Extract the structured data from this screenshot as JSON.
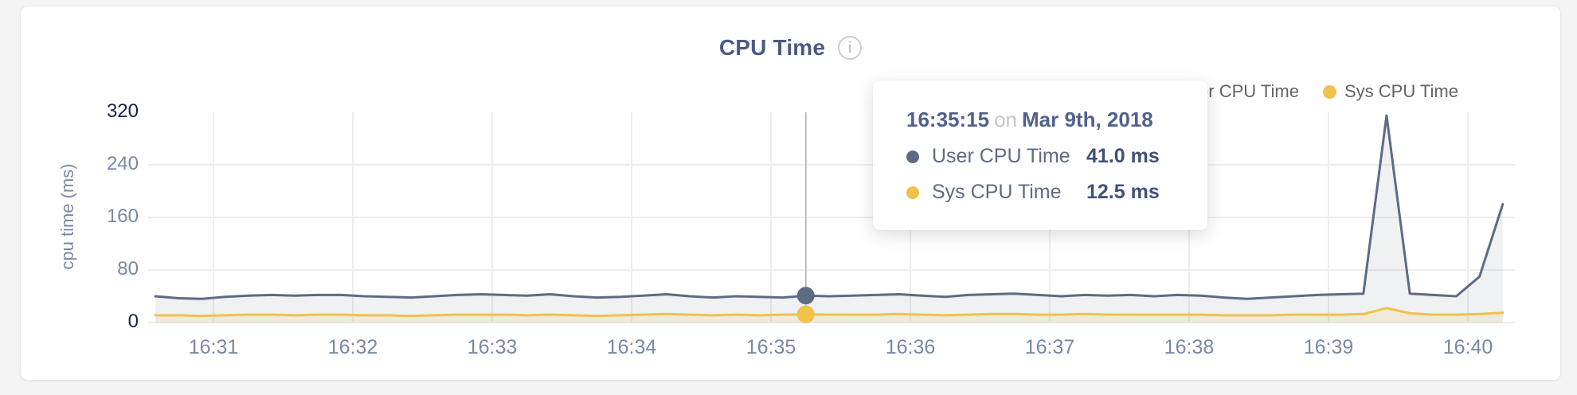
{
  "card": {
    "title": "CPU Time",
    "info_icon": "i"
  },
  "legend": {
    "items": [
      {
        "label": "User CPU Time",
        "color": "#5d6b85"
      },
      {
        "label": "Sys CPU Time",
        "color": "#f0c24b"
      }
    ]
  },
  "tooltip": {
    "time": "16:35:15",
    "preposition": "on",
    "date": "Mar 9th, 2018",
    "rows": [
      {
        "label": "User CPU Time",
        "value": "41.0 ms",
        "color": "#5d6b85"
      },
      {
        "label": "Sys CPU Time",
        "value": "12.5 ms",
        "color": "#f0c24b"
      }
    ]
  },
  "chart_data": {
    "type": "area",
    "title": "CPU Time",
    "xlabel": "",
    "ylabel": "cpu time (ms)",
    "ylim": [
      0,
      320
    ],
    "yticks": [
      0,
      80,
      160,
      240,
      320
    ],
    "xticks": [
      "16:31",
      "16:32",
      "16:33",
      "16:34",
      "16:35",
      "16:36",
      "16:37",
      "16:38",
      "16:39",
      "16:40"
    ],
    "grid": true,
    "legend_position": "top-right",
    "x": [
      "16:30:35",
      "16:30:45",
      "16:30:55",
      "16:31:05",
      "16:31:15",
      "16:31:25",
      "16:31:35",
      "16:31:45",
      "16:31:55",
      "16:32:05",
      "16:32:15",
      "16:32:25",
      "16:32:35",
      "16:32:45",
      "16:32:55",
      "16:33:05",
      "16:33:15",
      "16:33:25",
      "16:33:35",
      "16:33:45",
      "16:33:55",
      "16:34:05",
      "16:34:15",
      "16:34:25",
      "16:34:35",
      "16:34:45",
      "16:34:55",
      "16:35:05",
      "16:35:15",
      "16:35:25",
      "16:35:35",
      "16:35:45",
      "16:35:55",
      "16:36:05",
      "16:36:15",
      "16:36:25",
      "16:36:35",
      "16:36:45",
      "16:36:55",
      "16:37:05",
      "16:37:15",
      "16:37:25",
      "16:37:35",
      "16:37:45",
      "16:37:55",
      "16:38:05",
      "16:38:15",
      "16:38:25",
      "16:38:35",
      "16:38:45",
      "16:38:55",
      "16:39:05",
      "16:39:15",
      "16:39:25",
      "16:39:35",
      "16:39:45",
      "16:39:55",
      "16:40:05",
      "16:40:15"
    ],
    "series": [
      {
        "name": "User CPU Time",
        "color": "#5d6b85",
        "fill": "rgba(101,115,140,0.10)",
        "values": [
          40,
          37,
          36,
          39,
          41,
          42,
          41,
          42,
          42,
          40,
          39,
          38,
          40,
          42,
          43,
          42,
          41,
          43,
          40,
          38,
          39,
          41,
          43,
          40,
          38,
          40,
          39,
          38,
          41,
          40,
          41,
          42,
          43,
          41,
          39,
          42,
          43,
          44,
          42,
          40,
          42,
          41,
          42,
          40,
          42,
          41,
          38,
          36,
          38,
          40,
          42,
          43,
          44,
          315,
          44,
          42,
          40,
          70,
          180
        ]
      },
      {
        "name": "Sys CPU Time",
        "color": "#f0c24b",
        "fill": "rgba(240,197,82,0.16)",
        "values": [
          11,
          11,
          10,
          11,
          12,
          12,
          11,
          12,
          12,
          11,
          11,
          10,
          11,
          12,
          12,
          12,
          11,
          12,
          11,
          10,
          11,
          12,
          13,
          12,
          11,
          12,
          11,
          12,
          12.5,
          12,
          12,
          12,
          13,
          12,
          11,
          12,
          13,
          13,
          12,
          12,
          13,
          12,
          12,
          12,
          12,
          12,
          11,
          11,
          11,
          12,
          12,
          12,
          13,
          22,
          14,
          12,
          12,
          13,
          15
        ]
      }
    ],
    "selected": {
      "time": "16:35:15",
      "values": [
        41.0,
        12.5
      ]
    }
  }
}
